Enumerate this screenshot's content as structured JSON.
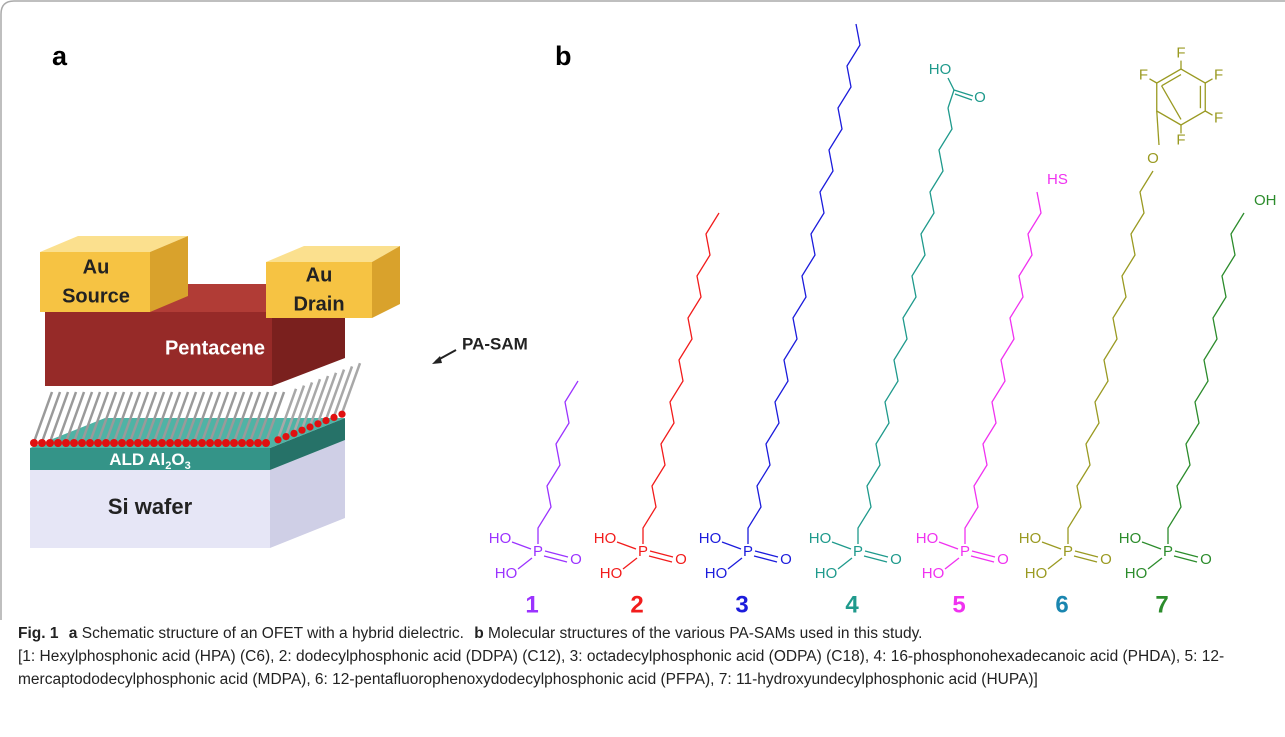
{
  "panel_a": {
    "label": "a",
    "source": [
      "Au",
      "Source"
    ],
    "drain": [
      "Au",
      "Drain"
    ],
    "pentacene": "Pentacene",
    "pa_sam": "PA-SAM",
    "dielectric": [
      "ALD Al",
      "2",
      "O",
      "3"
    ],
    "substrate": "Si wafer"
  },
  "panel_b": {
    "label": "b",
    "molecules": [
      {
        "number": "1",
        "color": "#9b33ff",
        "number_color": "#9b33ff",
        "head": [
          "HO",
          "P",
          "O",
          "HO"
        ],
        "tail": []
      },
      {
        "number": "2",
        "color": "#f21c1c",
        "number_color": "#f21c1c",
        "head": [
          "HO",
          "P",
          "O",
          "HO"
        ],
        "tail": []
      },
      {
        "number": "3",
        "color": "#1c1cdc",
        "number_color": "#1c1cdc",
        "head": [
          "HO",
          "P",
          "O",
          "HO"
        ],
        "tail": []
      },
      {
        "number": "4",
        "color": "#1f9a8c",
        "number_color": "#1f9a8c",
        "head": [
          "HO",
          "P",
          "O",
          "HO"
        ],
        "tail": [
          "HO",
          "O"
        ]
      },
      {
        "number": "5",
        "color": "#f032f0",
        "number_color": "#f032f0",
        "head": [
          "HO",
          "P",
          "O",
          "HO"
        ],
        "tail": [
          "HS"
        ]
      },
      {
        "number": "6",
        "color": "#9a9a22",
        "number_color": "#1a86b0",
        "head": [
          "HO",
          "P",
          "O",
          "HO"
        ],
        "tail": [
          "O",
          "F",
          "F",
          "F",
          "F",
          "F"
        ]
      },
      {
        "number": "7",
        "color": "#2c8c2c",
        "number_color": "#2c8c2c",
        "head": [
          "HO",
          "P",
          "O",
          "HO"
        ],
        "tail": [
          "OH"
        ]
      }
    ]
  },
  "caption": {
    "figure": "Fig. 1",
    "parts": [
      {
        "label": "a",
        "text": "Schematic structure of an OFET with a hybrid dielectric."
      },
      {
        "label": "b",
        "text": "Molecular structures of the various PA-SAMs used in this study."
      }
    ],
    "list": "[1: Hexylphosphonic acid (HPA) (C6), 2: dodecylphosphonic acid (DDPA) (C12), 3: octadecylphosphonic acid (ODPA) (C18), 4: 16-phosphonohexadecanoic acid (PHDA), 5: 12-mercaptododecylphosphonic acid (MDPA), 6: 12-pentafluorophenoxydodecylphosphonic acid (PFPA), 7: 11-hydroxyundecylphosphonic acid (HUPA)]"
  }
}
